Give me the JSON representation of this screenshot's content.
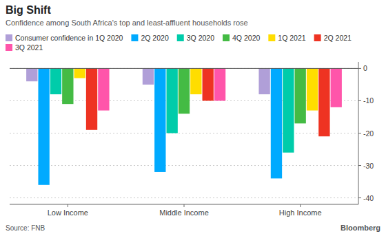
{
  "chart_data": {
    "type": "bar",
    "title": "Big Shift",
    "subtitle": "Confidence among South Africa's top and least-affluent households rose",
    "annotations": [
      "Source: FNB",
      "Bloomberg"
    ],
    "categories": [
      "Low Income",
      "Middle Income",
      "High Income"
    ],
    "series": [
      {
        "name": "Consumer confidence in 1Q 2020",
        "color": "#b09fd8",
        "values": [
          -4,
          -5,
          -8
        ]
      },
      {
        "name": "2Q 2020",
        "color": "#00aaff",
        "values": [
          -36,
          -32,
          -34
        ]
      },
      {
        "name": "3Q 2020",
        "color": "#00ccaa",
        "values": [
          -8,
          -20,
          -26
        ]
      },
      {
        "name": "4Q 2020",
        "color": "#44bb44",
        "values": [
          -11,
          -14,
          -17
        ]
      },
      {
        "name": "1Q 2021",
        "color": "#ffdd00",
        "values": [
          -3,
          -8,
          -13
        ]
      },
      {
        "name": "2Q 2021",
        "color": "#ee3322",
        "values": [
          -19,
          -10,
          -21
        ]
      },
      {
        "name": "3Q 2021",
        "color": "#ff55aa",
        "values": [
          -13,
          -10,
          -12
        ]
      }
    ],
    "ylim": [
      -42,
      2
    ],
    "yticks": [
      0,
      -10,
      -20,
      -30,
      -40
    ],
    "grid": true,
    "legend": "top"
  }
}
